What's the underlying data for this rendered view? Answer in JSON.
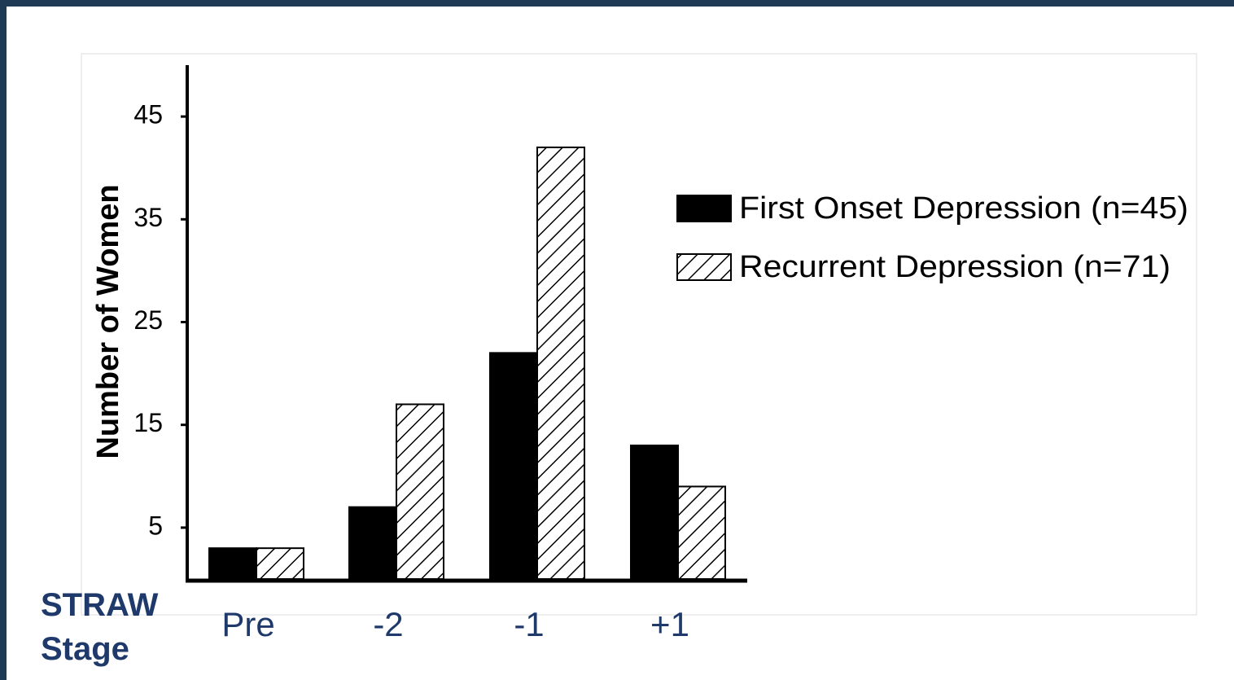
{
  "chart_data": {
    "type": "bar",
    "ylabel": "Number of Women",
    "xlabel": "STRAW Stage",
    "categories": [
      "Pre",
      "-2",
      "-1",
      "+1"
    ],
    "series": [
      {
        "name": "First Onset Depression (n=45)",
        "color": "#000000",
        "values": [
          3,
          7,
          22,
          13
        ]
      },
      {
        "name": "Recurrent Depression (n=71)",
        "color": "#ffffff",
        "pattern": "hatch",
        "values": [
          3,
          17,
          42,
          9
        ]
      }
    ],
    "ylim": [
      0,
      50
    ],
    "yticks": [
      5,
      15,
      25,
      35,
      45
    ],
    "grid": false,
    "legend": "right"
  }
}
